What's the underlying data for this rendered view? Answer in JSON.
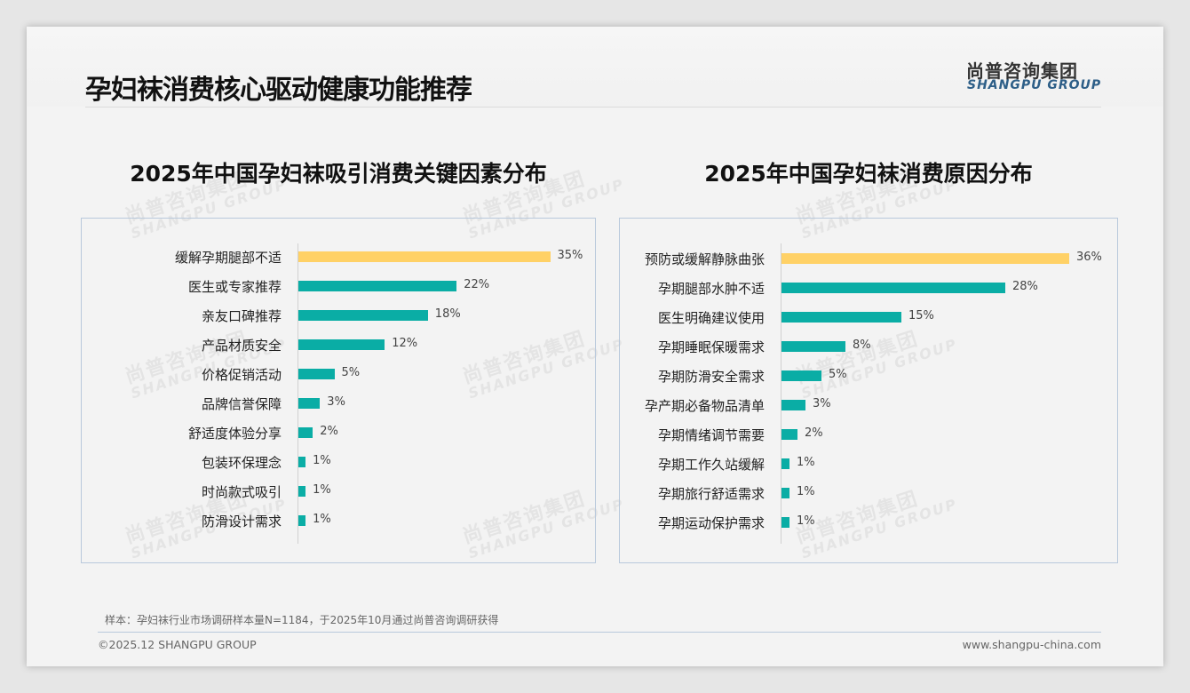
{
  "header": {
    "title": "孕妇袜消费核心驱动健康功能推荐",
    "logo_cn": "尚普咨询集团",
    "logo_en": "SHANGPU GROUP"
  },
  "watermark": {
    "cn": "尚普咨询集团",
    "en": "SHANGPU GROUP"
  },
  "colors": {
    "highlight": "#FFD166",
    "bar": "#0AADA5"
  },
  "chart_data": [
    {
      "type": "bar",
      "orientation": "horizontal",
      "title": "2025年中国孕妇袜吸引消费关键因素分布",
      "unit": "%",
      "categories": [
        "缓解孕期腿部不适",
        "医生或专家推荐",
        "亲友口碑推荐",
        "产品材质安全",
        "价格促销活动",
        "品牌信誉保障",
        "舒适度体验分享",
        "包装环保理念",
        "时尚款式吸引",
        "防滑设计需求"
      ],
      "values": [
        35,
        22,
        18,
        12,
        5,
        3,
        2,
        1,
        1,
        1
      ],
      "labels": [
        "35%",
        "22%",
        "18%",
        "12%",
        "5%",
        "3%",
        "2%",
        "1%",
        "1%",
        "1%"
      ],
      "xlim": [
        0,
        35
      ]
    },
    {
      "type": "bar",
      "orientation": "horizontal",
      "title": "2025年中国孕妇袜消费原因分布",
      "unit": "%",
      "categories": [
        "预防或缓解静脉曲张",
        "孕期腿部水肿不适",
        "医生明确建议使用",
        "孕期睡眠保暖需求",
        "孕期防滑安全需求",
        "孕产期必备物品清单",
        "孕期情绪调节需要",
        "孕期工作久站缓解",
        "孕期旅行舒适需求",
        "孕期运动保护需求"
      ],
      "values": [
        36,
        28,
        15,
        8,
        5,
        3,
        2,
        1,
        1,
        1
      ],
      "labels": [
        "36%",
        "28%",
        "15%",
        "8%",
        "5%",
        "3%",
        "2%",
        "1%",
        "1%",
        "1%"
      ],
      "xlim": [
        0,
        36
      ]
    }
  ],
  "footer": {
    "note": "样本：孕妇袜行业市场调研样本量N=1184，于2025年10月通过尚普咨询调研获得",
    "copyright": "©2025.12 SHANGPU GROUP",
    "url": "www.shangpu-china.com"
  }
}
